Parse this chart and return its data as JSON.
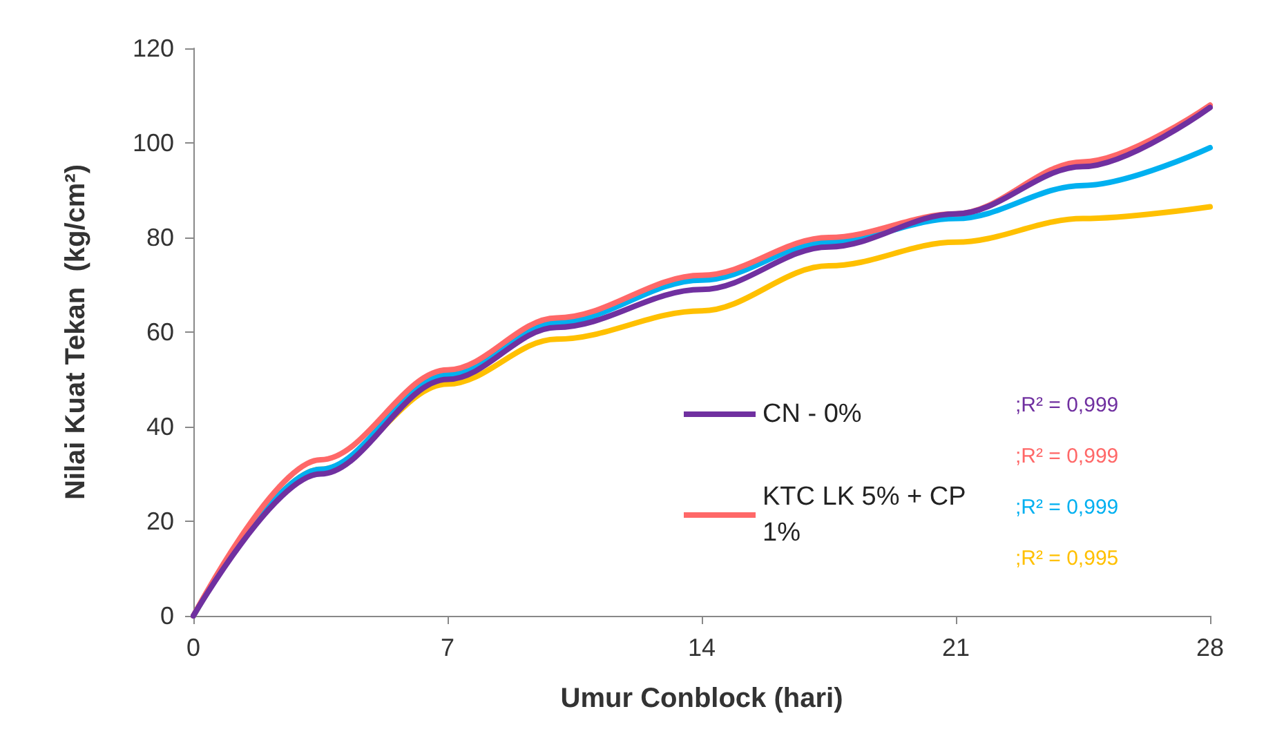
{
  "chart_data": {
    "type": "line",
    "xlabel": "Umur Conblock (hari)",
    "ylabel": "Nilai Kuat Tekan  (kg/cm²)",
    "x": [
      0,
      3.5,
      7,
      10,
      14,
      17.5,
      21,
      24.5,
      28
    ],
    "series": [
      {
        "name": "CN - 0%",
        "color": "#7030a0",
        "values": [
          0,
          30,
          50,
          61,
          69,
          78,
          85,
          95,
          107.5
        ]
      },
      {
        "name": "KTC LK 5% + CP 1%",
        "color": "#ff6868",
        "values": [
          0,
          33,
          52,
          63,
          72,
          80,
          85,
          96,
          108
        ]
      },
      {
        "color": "#00b0f0",
        "values": [
          0,
          31,
          51,
          62,
          71,
          79,
          84,
          91,
          99
        ]
      },
      {
        "color": "#ffc000",
        "values": [
          0,
          31,
          49,
          58.5,
          64.5,
          74,
          79,
          84,
          86.5
        ]
      }
    ],
    "annotations": [
      ";R² = 0,999",
      ";R² = 0,999",
      ";R² = 0,999",
      ";R² = 0,995"
    ],
    "xlim": [
      0,
      28
    ],
    "xticks": [
      0,
      7,
      14,
      21,
      28
    ],
    "ylim": [
      0,
      120
    ],
    "yticks": [
      0,
      20,
      40,
      60,
      80,
      100,
      120
    ],
    "grid": false,
    "legend": "bottom right",
    "marker": "none",
    "line_style": "solid"
  }
}
